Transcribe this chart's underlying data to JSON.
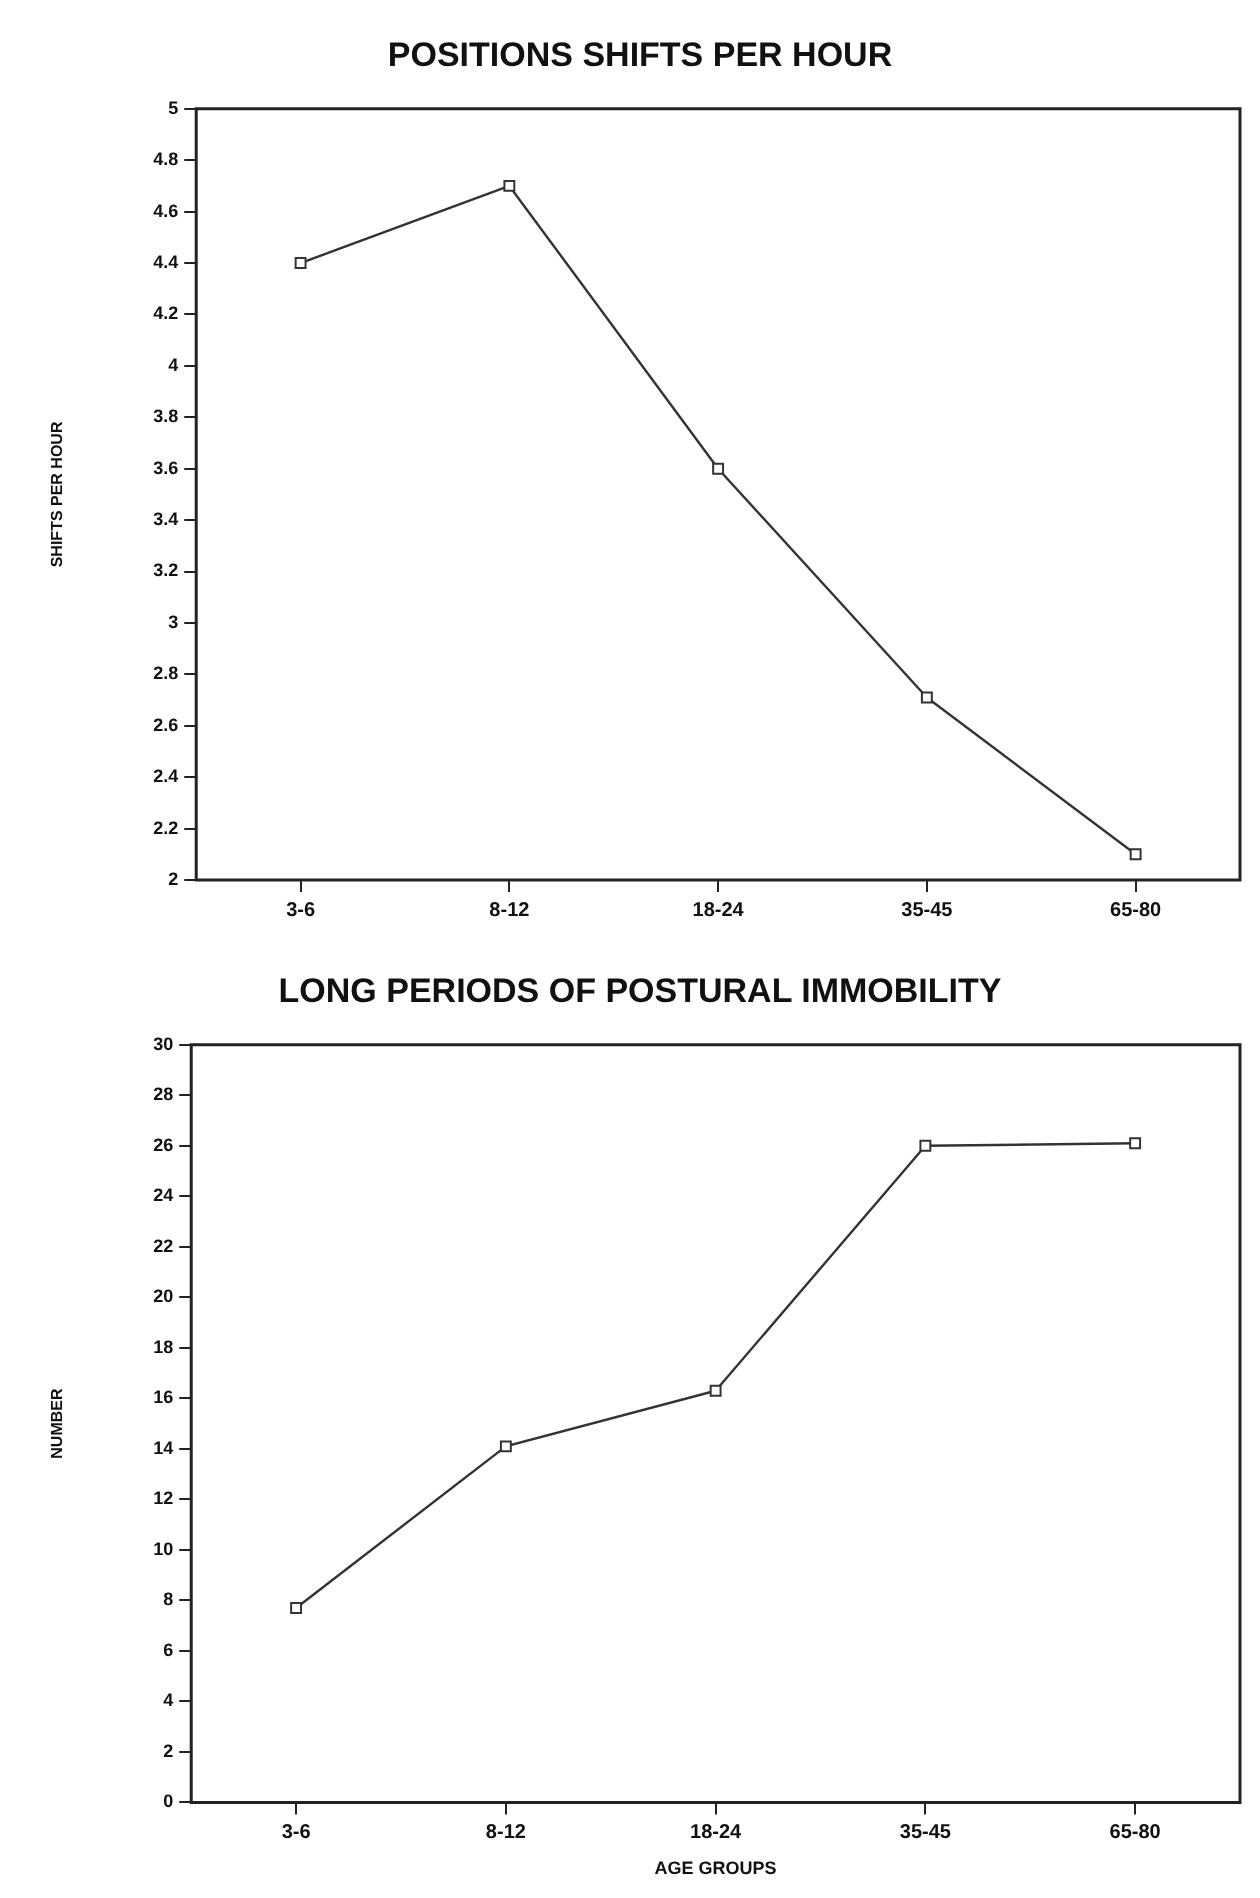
{
  "chart_data": [
    {
      "type": "line",
      "title": "POSITIONS SHIFTS PER HOUR",
      "ylabel": "SHIFTS PER HOUR",
      "categories": [
        "3-6",
        "8-12",
        "18-24",
        "35-45",
        "65-80"
      ],
      "series": [
        {
          "color": "#333333",
          "values": [
            4.4,
            4.7,
            3.6,
            2.71,
            2.1
          ]
        }
      ],
      "ylim": [
        2,
        5
      ],
      "yticks": [
        2,
        2.2,
        2.4,
        2.6,
        2.8,
        3,
        3.2,
        3.4,
        3.6,
        3.8,
        4,
        4.2,
        4.4,
        4.6,
        4.8,
        5
      ],
      "grid": false,
      "marker": "square",
      "line_style": "solid"
    },
    {
      "type": "line",
      "title": "LONG PERIODS OF POSTURAL IMMOBILITY",
      "xlabel": "AGE GROUPS",
      "ylabel": "NUMBER",
      "categories": [
        "3-6",
        "8-12",
        "18-24",
        "35-45",
        "65-80"
      ],
      "series": [
        {
          "color": "#333333",
          "values": [
            7.7,
            14.1,
            16.3,
            26.0,
            26.1
          ]
        }
      ],
      "ylim": [
        0,
        30
      ],
      "yticks": [
        0,
        2,
        4,
        6,
        8,
        10,
        12,
        14,
        16,
        18,
        20,
        22,
        24,
        26,
        28,
        30
      ],
      "grid": false,
      "marker": "square",
      "line_style": "solid"
    }
  ]
}
